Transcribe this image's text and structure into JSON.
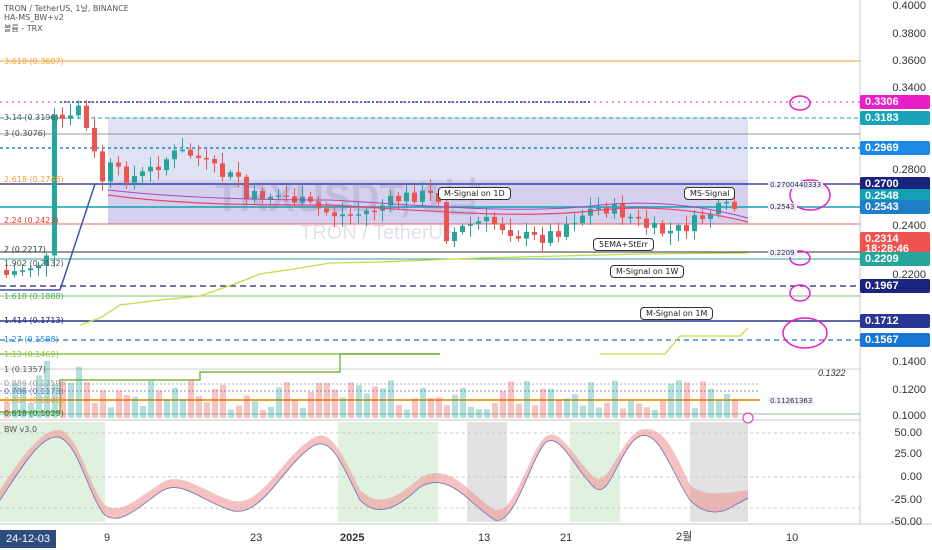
{
  "header": {
    "symbol_line": "TRON / TetherUS, 1날, BINANCE",
    "indicator_1": "HA-MS_BW+v2",
    "indicator_2": "볼륨 - TRX"
  },
  "watermark": {
    "big": "TRXUSDT, 1날",
    "small": "TRON / TetherUS"
  },
  "price_axis": [
    "0.4000",
    "0.3800",
    "0.3600",
    "0.3400",
    "0.2800",
    "0.2400",
    "0.2200",
    "0.1400",
    "0.1200",
    "0.1000"
  ],
  "price_tags": [
    {
      "value": "0.3306",
      "bg": "#e91ec8",
      "fg": "#ffffff"
    },
    {
      "value": "0.3183",
      "bg": "#18a3b8",
      "fg": "#ffffff"
    },
    {
      "value": "0.2969",
      "bg": "#1e88e5",
      "fg": "#ffffff"
    },
    {
      "value": "0.2700",
      "bg": "#1a237e",
      "fg": "#ffffff"
    },
    {
      "value": "0.2548",
      "bg": "#14a0b4",
      "fg": "#ffffff"
    },
    {
      "value": "0.2543",
      "bg": "#1e7fc7",
      "fg": "#ffffff"
    },
    {
      "value": "0.2314",
      "bg": "#ef5350",
      "fg": "#ffffff"
    },
    {
      "value": "18:28:46",
      "bg": "#ef5350",
      "fg": "#ffffff"
    },
    {
      "value": "0.2209",
      "bg": "#26a69a",
      "fg": "#ffffff"
    },
    {
      "value": "0.1967",
      "bg": "#1a237e",
      "fg": "#ffffff"
    },
    {
      "value": "0.1712",
      "bg": "#283593",
      "fg": "#ffffff"
    },
    {
      "value": "0.1567",
      "bg": "#1976d2",
      "fg": "#ffffff"
    }
  ],
  "extra_label": "0.1322",
  "fib_levels": [
    {
      "label": "3.618 (0.3607)",
      "color": "#f0a030"
    },
    {
      "label": "3.14 (0.3196)",
      "color": "#555555"
    },
    {
      "label": "3 (0.3076)",
      "color": "#555555"
    },
    {
      "label": "2.618 (0.2748)",
      "color": "#f0a030"
    },
    {
      "label": "2.24 (0.2423)",
      "color": "#e53935"
    },
    {
      "label": "2 (0.2217)",
      "color": "#333333"
    },
    {
      "label": "1.902 (0.2132)",
      "color": "#555555"
    },
    {
      "label": "1.618 (0.1888)",
      "color": "#4caf50"
    },
    {
      "label": "1.414 (0.1713)",
      "color": "#1a237e"
    },
    {
      "label": "1.27 (0.1588)",
      "color": "#1e88e5"
    },
    {
      "label": "1.13 (0.1469)",
      "color": "#8bc34a"
    },
    {
      "label": "1 (0.1357)",
      "color": "#555555"
    },
    {
      "label": "0.886 (0.1259)",
      "color": "#9e9e9e"
    },
    {
      "label": "0.786 (0.1173)",
      "color": "#5c6bc0"
    },
    {
      "label": "0.707 (0.1105)",
      "color": "#f0a030"
    },
    {
      "label": "0.618 (0.1029)",
      "color": "#2e7d32"
    }
  ],
  "callouts": {
    "m_signal_1d": "M-Signal on 1D",
    "ms_signal": "MS-Signal",
    "ema_sterr": "5EMA+StErr",
    "m_signal_1w": "M-Signal on 1W",
    "m_signal_1m": "M-Signal on 1M"
  },
  "small_labels": {
    "top_right": "0.2700440333",
    "mid": "0.2543",
    "low": "0.2209",
    "volume": "0.11261363"
  },
  "oscillator": {
    "name": "BW v3.0",
    "axis": [
      "50.00",
      "25.00",
      "0.00",
      "-25.00",
      "-50.00"
    ]
  },
  "time_axis": {
    "badge": "24-12-03",
    "labels": [
      "9",
      "23",
      "2025",
      "13",
      "21",
      "2월",
      "10"
    ]
  },
  "colors": {
    "bull": "#26a69a",
    "bear": "#ef5350",
    "ms_band": "#b39ddb",
    "osc_up": "#ef9a9a",
    "osc_down": "#90caf9",
    "circle": "#e91ec8"
  }
}
